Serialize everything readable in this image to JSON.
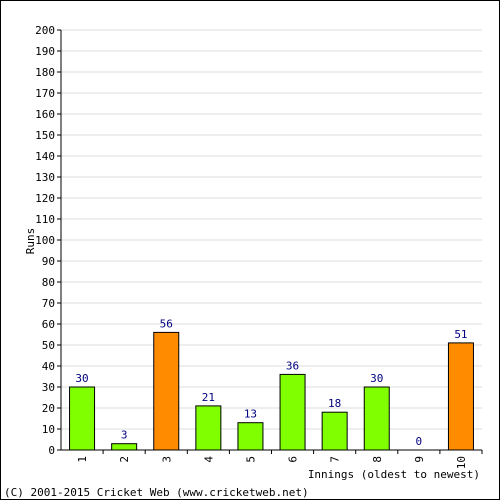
{
  "chart_data": {
    "type": "bar",
    "categories": [
      "1",
      "2",
      "3",
      "4",
      "5",
      "6",
      "7",
      "8",
      "9",
      "10"
    ],
    "values": [
      30,
      3,
      56,
      21,
      13,
      36,
      18,
      30,
      0,
      51
    ],
    "bar_colors": [
      "#80ff00",
      "#80ff00",
      "#ff8c00",
      "#80ff00",
      "#80ff00",
      "#80ff00",
      "#80ff00",
      "#80ff00",
      "#80ff00",
      "#ff8c00"
    ],
    "xlabel": "Innings (oldest to newest)",
    "ylabel": "Runs",
    "ylim": [
      0,
      200
    ],
    "ytick_step": 10,
    "grid": true
  },
  "footer": {
    "copyright": "(C) 2001-2015 Cricket Web (www.cricketweb.net)"
  },
  "colors": {
    "grid": "#dcdcdc",
    "axis": "#000000",
    "bar_border": "#000000",
    "data_label": "#000080"
  }
}
